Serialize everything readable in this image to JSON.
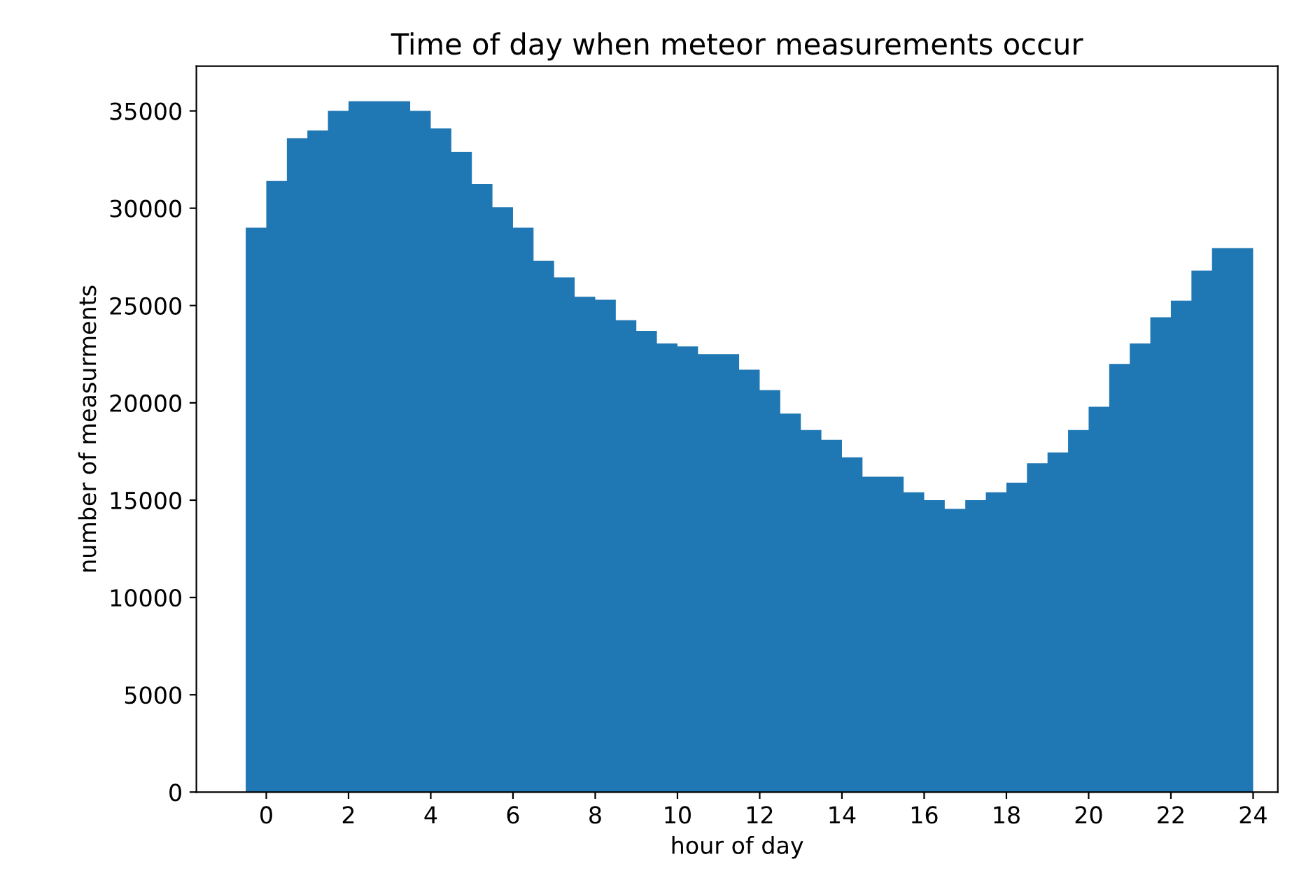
{
  "chart_data": {
    "type": "histogram",
    "title": "Time of day when meteor measurements occur",
    "xlabel": "hour of day",
    "ylabel": "number of measurments",
    "bins": [
      -0.5,
      0,
      0.5,
      1,
      1.5,
      2,
      2.5,
      3,
      3.5,
      4,
      4.5,
      5,
      5.5,
      6,
      6.5,
      7,
      7.5,
      8,
      8.5,
      9,
      9.5,
      10,
      10.5,
      11,
      11.5,
      12,
      12.5,
      13,
      13.5,
      14,
      14.5,
      15,
      15.5,
      16,
      16.5,
      17,
      17.5,
      18,
      18.5,
      19,
      19.5,
      20,
      20.5,
      21,
      21.5,
      22,
      22.5,
      23,
      23.5,
      24
    ],
    "values": [
      29000,
      31400,
      33600,
      34000,
      35000,
      35500,
      35500,
      35500,
      35000,
      34100,
      32900,
      31250,
      30050,
      29000,
      27300,
      26450,
      25450,
      25300,
      24250,
      23700,
      23050,
      22900,
      22500,
      22500,
      21700,
      20650,
      19450,
      18600,
      18100,
      17200,
      16200,
      16200,
      15400,
      15000,
      14550,
      15000,
      15400,
      15900,
      16900,
      17450,
      18600,
      19800,
      22000,
      23050,
      24400,
      25250,
      26800,
      27950,
      27950
    ],
    "color": "#1f77b4",
    "xlim": [
      -1.7,
      24.6
    ],
    "ylim": [
      0,
      37300
    ],
    "xticks": [
      0,
      2,
      4,
      6,
      8,
      10,
      12,
      14,
      16,
      18,
      20,
      22,
      24
    ],
    "yticks": [
      0,
      5000,
      10000,
      15000,
      20000,
      25000,
      30000,
      35000
    ],
    "grid": false
  }
}
